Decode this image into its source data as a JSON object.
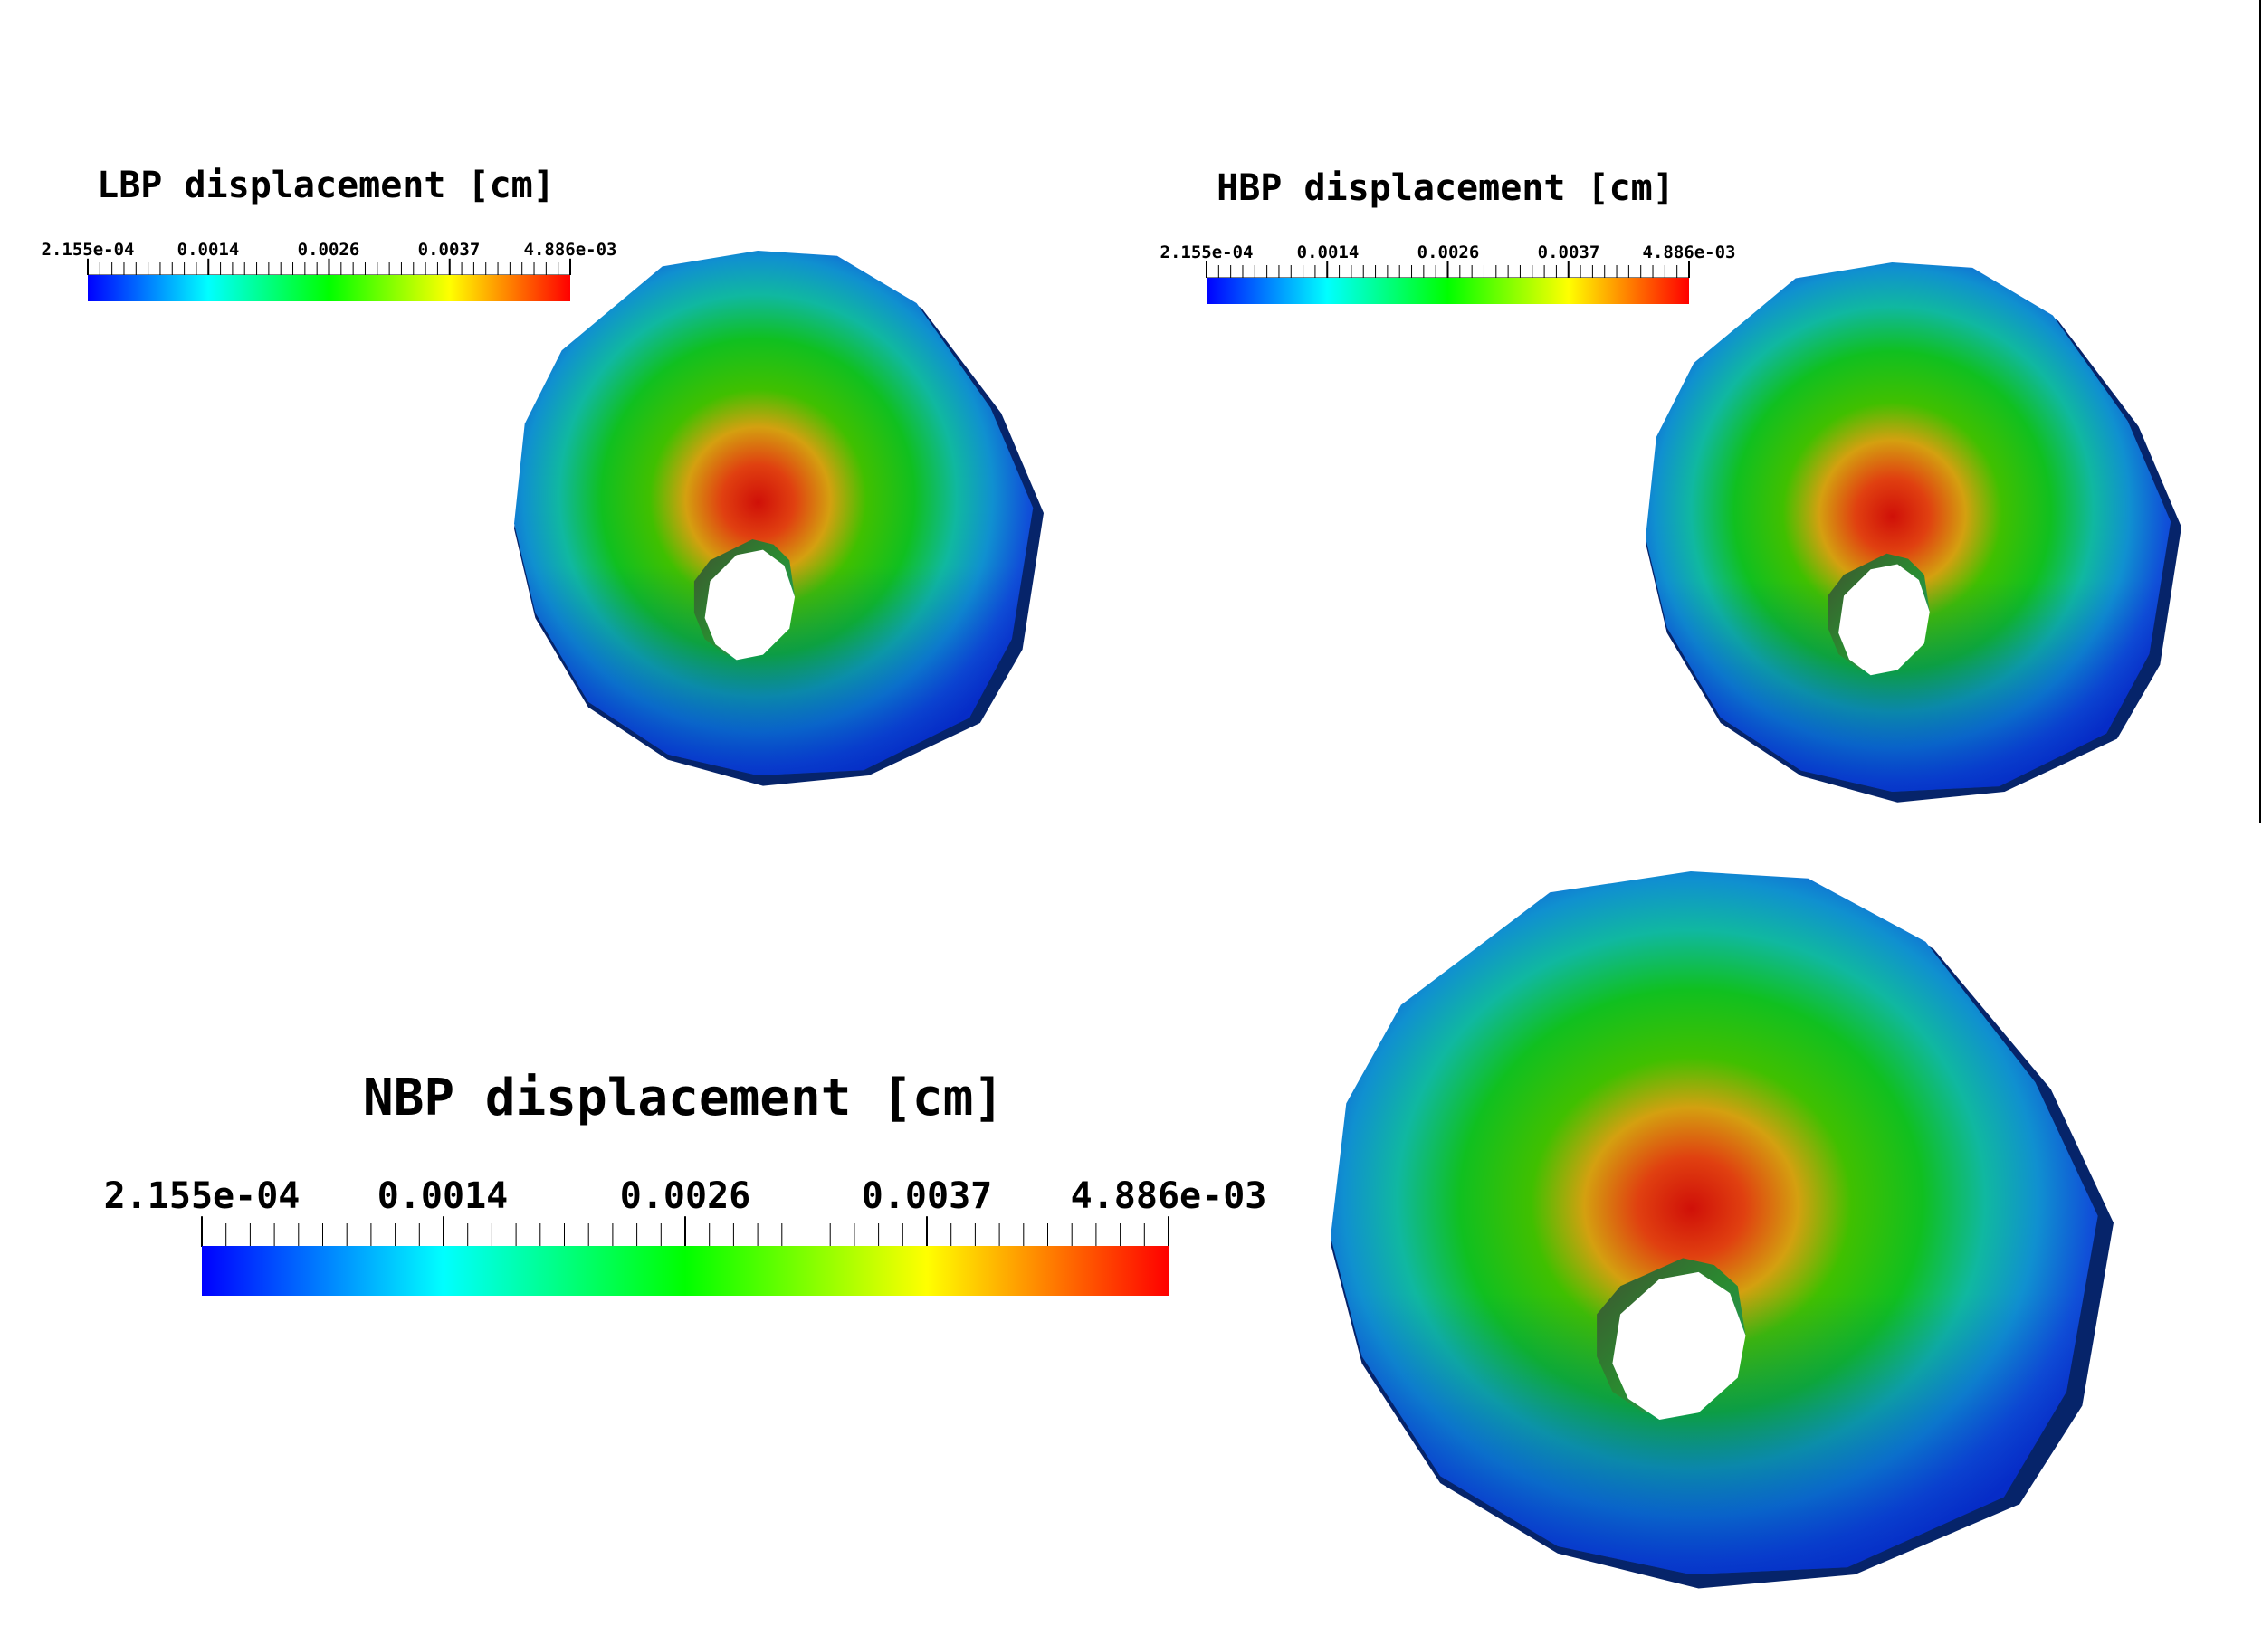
{
  "panels": [
    {
      "id": "lbp",
      "title": "LBP displacement [cm]",
      "colorbar": {
        "tick_labels": [
          "2.155e-04",
          "0.0014",
          "0.0026",
          "0.0037",
          "4.886e-03"
        ],
        "min": 0.0002155,
        "max": 0.004886,
        "colormap": [
          "#0000ff",
          "#00ffff",
          "#00ff00",
          "#ffff00",
          "#ff0000"
        ]
      }
    },
    {
      "id": "hbp",
      "title": "HBP displacement [cm]",
      "colorbar": {
        "tick_labels": [
          "2.155e-04",
          "0.0014",
          "0.0026",
          "0.0037",
          "4.886e-03"
        ],
        "min": 0.0002155,
        "max": 0.004886,
        "colormap": [
          "#0000ff",
          "#00ffff",
          "#00ff00",
          "#ffff00",
          "#ff0000"
        ]
      }
    },
    {
      "id": "nbp",
      "title": "NBP displacement [cm]",
      "colorbar": {
        "tick_labels": [
          "2.155e-04",
          "0.0014",
          "0.0026",
          "0.0037",
          "4.886e-03"
        ],
        "min": 0.0002155,
        "max": 0.004886,
        "colormap": [
          "#0000ff",
          "#00ffff",
          "#00ff00",
          "#ffff00",
          "#ff0000"
        ]
      }
    }
  ]
}
